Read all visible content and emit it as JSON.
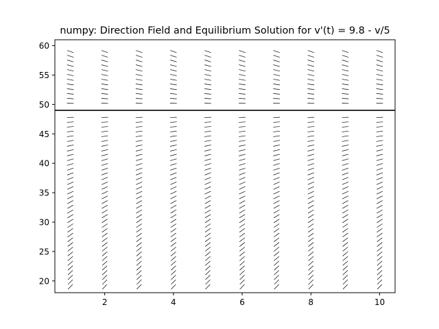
{
  "chart_data": {
    "type": "quiver",
    "title": "numpy: Direction Field and Equilibrium Solution for v'(t) = 9.8 - v/5",
    "xlabel": "",
    "ylabel": "",
    "equation": {
      "a": 9.8,
      "b": 5
    },
    "xlim": [
      0.55,
      10.45
    ],
    "ylim": [
      18.0,
      61.0
    ],
    "grid": false,
    "x_ticks": [
      2,
      4,
      6,
      8,
      10
    ],
    "y_ticks": [
      20,
      25,
      30,
      35,
      40,
      45,
      50,
      55,
      60
    ],
    "field": {
      "t_values": [
        1,
        2,
        3,
        4,
        5,
        6,
        7,
        8,
        9,
        10
      ],
      "v_start": 19,
      "v_end": 59,
      "v_step": 0.8
    },
    "equilibrium": {
      "v": 49
    },
    "colors": {
      "arrows": "#000000",
      "equilibrium_line": "#000000",
      "axes": "#000000",
      "background": "#ffffff"
    }
  }
}
